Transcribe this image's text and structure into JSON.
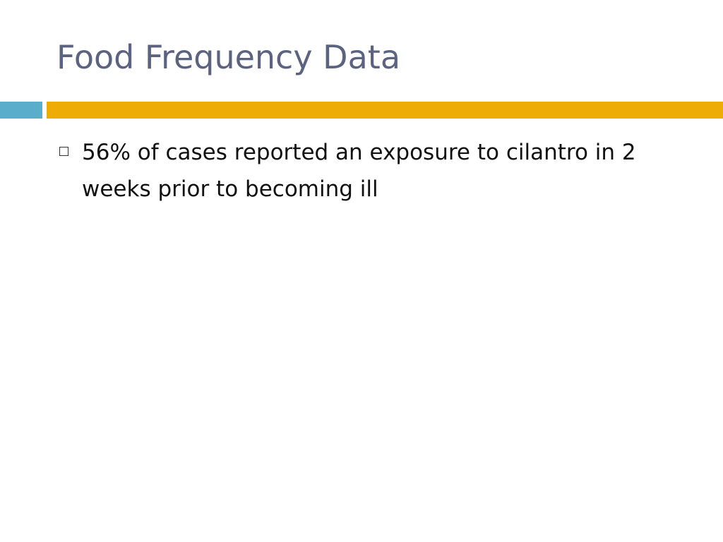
{
  "slide": {
    "title": "Food Frequency Data",
    "bullets": [
      {
        "text": "56% of cases reported an exposure to cilantro in 2 weeks prior to becoming ill",
        "marker_icon": "hollow-square-icon"
      }
    ]
  },
  "colors": {
    "title": "#5b6380",
    "accent_left": "#5aaecb",
    "accent_right": "#eeac06",
    "text": "#111111"
  }
}
